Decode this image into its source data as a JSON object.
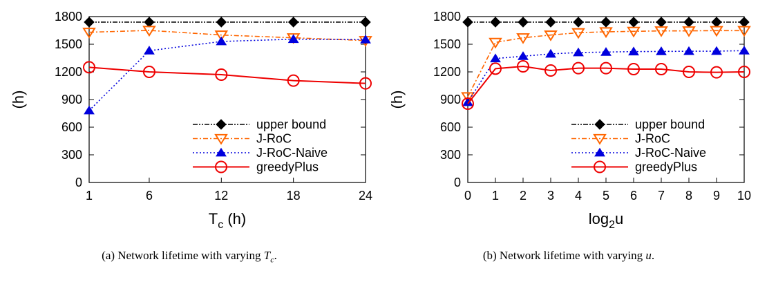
{
  "chart_data": [
    {
      "type": "line",
      "ylabel": "(h)",
      "xlabel_main": "T",
      "xlabel_sub": "c",
      "xlabel_suffix": " (h)",
      "ylim": [
        0,
        1800
      ],
      "yticks": [
        0,
        300,
        600,
        900,
        1200,
        1500,
        1800
      ],
      "x_positions": [
        1,
        6,
        12,
        18,
        24
      ],
      "categories": [
        "1",
        "6",
        "12",
        "18",
        "24"
      ],
      "legend_position": "bottom-right",
      "series": [
        {
          "name": "upper bound",
          "values": [
            1740,
            1740,
            1740,
            1740,
            1740
          ],
          "color": "#000000",
          "marker": "diamond",
          "dash": "7,2,2,2,2,2"
        },
        {
          "name": "J-RoC",
          "values": [
            1630,
            1650,
            1600,
            1570,
            1540
          ],
          "color": "#ff6600",
          "marker": "triangle-down",
          "dash": "7,3,2,3"
        },
        {
          "name": "J-RoC-Naive",
          "values": [
            780,
            1430,
            1530,
            1555,
            1550
          ],
          "color": "#0000dd",
          "marker": "triangle-up",
          "dash": "2,3"
        },
        {
          "name": "greedyPlus",
          "values": [
            1250,
            1200,
            1170,
            1105,
            1075
          ],
          "color": "#ee0000",
          "marker": "circle",
          "dash": ""
        }
      ],
      "caption": "(a) Network lifetime with varying T_c."
    },
    {
      "type": "line",
      "ylabel": "(h)",
      "xlabel_main": "log",
      "xlabel_sub": "2",
      "xlabel_suffix": "u",
      "ylim": [
        0,
        1800
      ],
      "yticks": [
        0,
        300,
        600,
        900,
        1200,
        1500,
        1800
      ],
      "x_positions": [
        0,
        1,
        2,
        3,
        4,
        5,
        6,
        7,
        8,
        9,
        10
      ],
      "categories": [
        "0",
        "1",
        "2",
        "3",
        "4",
        "5",
        "6",
        "7",
        "8",
        "9",
        "10"
      ],
      "legend_position": "bottom-right",
      "series": [
        {
          "name": "upper bound",
          "values": [
            1740,
            1740,
            1740,
            1740,
            1740,
            1740,
            1740,
            1740,
            1740,
            1740,
            1740
          ],
          "color": "#000000",
          "marker": "diamond",
          "dash": "7,2,2,2,2,2"
        },
        {
          "name": "J-RoC",
          "values": [
            930,
            1520,
            1570,
            1600,
            1625,
            1635,
            1640,
            1645,
            1645,
            1648,
            1648
          ],
          "color": "#ff6600",
          "marker": "triangle-down",
          "dash": "7,3,2,3"
        },
        {
          "name": "J-RoC-Naive",
          "values": [
            870,
            1345,
            1370,
            1395,
            1410,
            1415,
            1420,
            1422,
            1424,
            1425,
            1430
          ],
          "color": "#0000dd",
          "marker": "triangle-up",
          "dash": "2,3"
        },
        {
          "name": "greedyPlus",
          "values": [
            855,
            1235,
            1260,
            1215,
            1240,
            1240,
            1230,
            1230,
            1200,
            1195,
            1200
          ],
          "color": "#ee0000",
          "marker": "circle",
          "dash": ""
        }
      ],
      "caption": "(b) Network lifetime with varying u."
    }
  ]
}
